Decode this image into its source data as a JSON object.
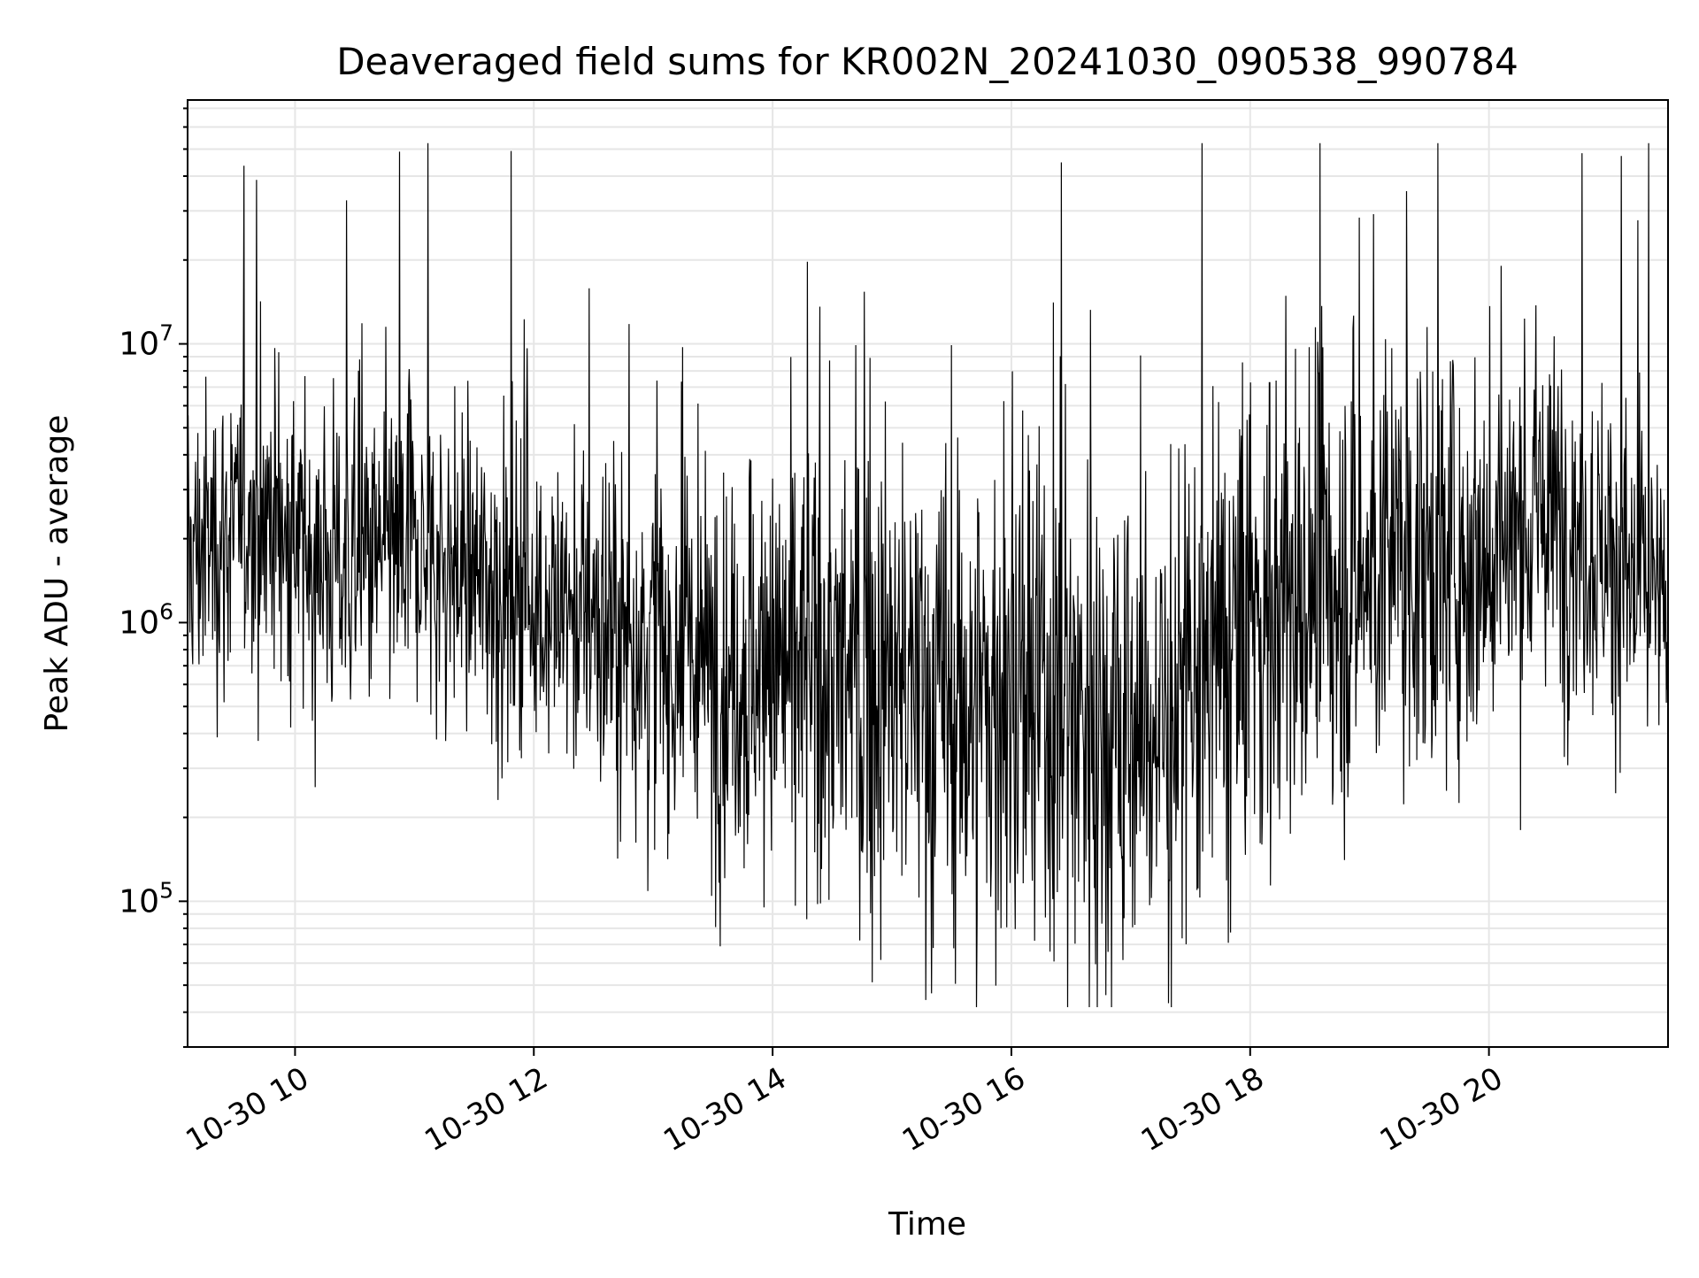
{
  "chart_data": {
    "type": "line",
    "title": "Deaveraged field sums for KR002N_20241030_090538_990784",
    "xlabel": "Time",
    "ylabel": "Peak ADU - average",
    "x_axis": {
      "kind": "datetime",
      "range": [
        "2024-10-30 09:06",
        "2024-10-30 21:30"
      ],
      "ticks": [
        "10-30 10",
        "10-30 12",
        "10-30 14",
        "10-30 16",
        "10-30 18",
        "10-30 20"
      ],
      "tick_values": [
        "2024-10-30 10:00",
        "2024-10-30 12:00",
        "2024-10-30 14:00",
        "2024-10-30 16:00",
        "2024-10-30 18:00",
        "2024-10-30 20:00"
      ]
    },
    "y_axis": {
      "scale": "log",
      "range": [
        30000,
        75000000
      ],
      "ticks": [
        {
          "value": 100000,
          "base": "10",
          "exp": "5"
        },
        {
          "value": 1000000,
          "base": "10",
          "exp": "6"
        },
        {
          "value": 10000000,
          "base": "10",
          "exp": "7"
        }
      ]
    },
    "grid": true,
    "line_color": "#000000",
    "series": [
      {
        "x": [
          "2024-10-30 09:06",
          "2024-10-30 09:20",
          "2024-10-30 09:50",
          "2024-10-30 10:00",
          "2024-10-30 10:30",
          "2024-10-30 11:00",
          "2024-10-30 11:30",
          "2024-10-30 12:00",
          "2024-10-30 12:30",
          "2024-10-30 13:00",
          "2024-10-30 13:30",
          "2024-10-30 14:00",
          "2024-10-30 14:30",
          "2024-10-30 15:00",
          "2024-10-30 15:30",
          "2024-10-30 16:00",
          "2024-10-30 16:30",
          "2024-10-30 17:00",
          "2024-10-30 17:30",
          "2024-10-30 18:00",
          "2024-10-30 18:30",
          "2024-10-30 19:00",
          "2024-10-30 19:30",
          "2024-10-30 20:00",
          "2024-10-30 20:30",
          "2024-10-30 21:00",
          "2024-10-30 21:30"
        ],
        "values": [
          1700000,
          2000000,
          2500000,
          1800000,
          1600000,
          1800000,
          1500000,
          1200000,
          1000000,
          800000,
          700000,
          700000,
          650000,
          600000,
          500000,
          500000,
          500000,
          400000,
          500000,
          1000000,
          1200000,
          1500000,
          1700000,
          1800000,
          2500000,
          1800000,
          1000000
        ]
      }
    ]
  }
}
